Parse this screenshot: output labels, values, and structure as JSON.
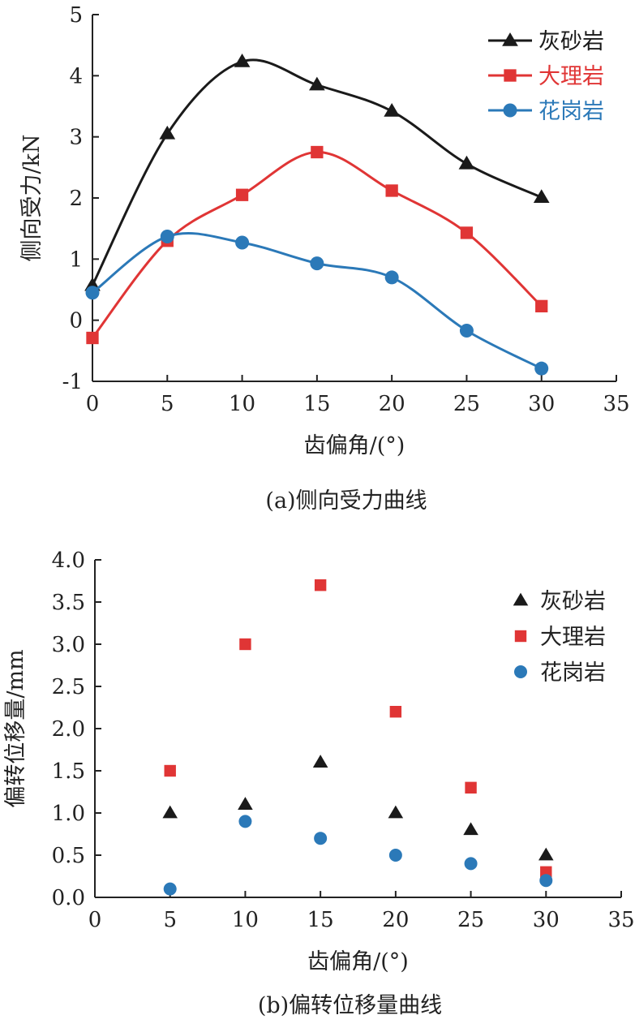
{
  "chart_data": [
    {
      "id": "a",
      "type": "line",
      "caption": "(a)侧向受力曲线",
      "xlabel": "齿偏角/(°)",
      "ylabel": "侧向受力/kN",
      "xlim": [
        0,
        35
      ],
      "ylim": [
        -1,
        5
      ],
      "xticks": [
        "0",
        "5",
        "10",
        "15",
        "20",
        "25",
        "30",
        "35"
      ],
      "yticks": [
        "-1",
        "0",
        "1",
        "2",
        "3",
        "4",
        "5"
      ],
      "legend_position": "top-right",
      "x": [
        0,
        5,
        10,
        15,
        20,
        25,
        30
      ],
      "series": [
        {
          "name": "灰砂岩",
          "marker": "triangle",
          "color": "#1a1a1a",
          "values": [
            0.57,
            3.05,
            4.23,
            3.85,
            3.42,
            2.56,
            2.01
          ]
        },
        {
          "name": "大理岩",
          "marker": "square",
          "color": "#e03535",
          "values": [
            -0.29,
            1.3,
            2.05,
            2.75,
            2.12,
            1.43,
            0.23
          ]
        },
        {
          "name": "花岗岩",
          "marker": "circle",
          "color": "#2b79b8",
          "values": [
            0.45,
            1.37,
            1.27,
            0.93,
            0.7,
            -0.17,
            -0.79
          ]
        }
      ]
    },
    {
      "id": "b",
      "type": "scatter",
      "caption": "(b)偏转位移量曲线",
      "xlabel": "齿偏角/(°)",
      "ylabel": "偏转位移量/mm",
      "xlim": [
        0,
        35
      ],
      "ylim": [
        0,
        4
      ],
      "xticks": [
        "0",
        "5",
        "10",
        "15",
        "20",
        "25",
        "30",
        "35"
      ],
      "yticks": [
        "0.0",
        "0.5",
        "1.0",
        "1.5",
        "2.0",
        "2.5",
        "3.0",
        "3.5",
        "4.0"
      ],
      "legend_position": "top-right",
      "x": [
        5,
        10,
        15,
        20,
        25,
        30
      ],
      "series": [
        {
          "name": "灰砂岩",
          "marker": "triangle",
          "color": "#1a1a1a",
          "values": [
            1.0,
            1.1,
            1.6,
            1.0,
            0.8,
            0.5
          ]
        },
        {
          "name": "大理岩",
          "marker": "square",
          "color": "#e03535",
          "values": [
            1.5,
            3.0,
            3.7,
            2.2,
            1.3,
            0.3
          ]
        },
        {
          "name": "花岗岩",
          "marker": "circle",
          "color": "#2b79b8",
          "values": [
            0.1,
            0.9,
            0.7,
            0.5,
            0.4,
            0.2
          ]
        }
      ]
    }
  ]
}
